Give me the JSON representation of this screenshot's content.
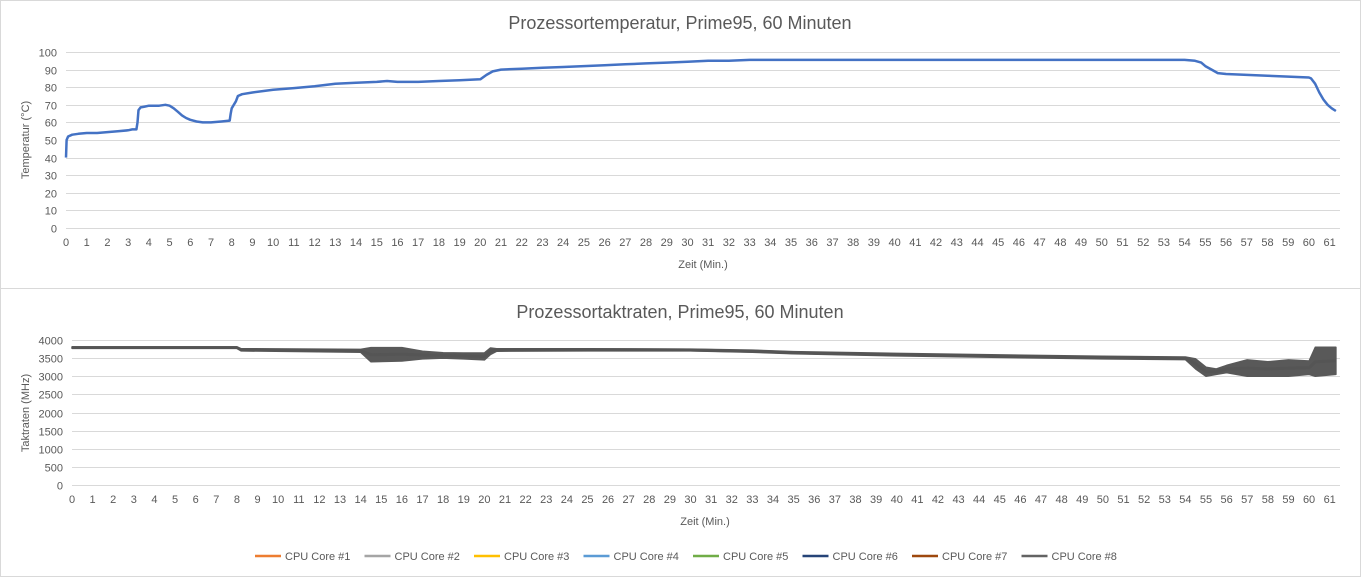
{
  "chart_data": [
    {
      "type": "line",
      "title": "Prozessortemperatur, Prime95, 60 Minuten",
      "xlabel": "Zeit (Min.)",
      "ylabel": "Temperatur (°C)",
      "xlim": [
        0,
        61.5
      ],
      "ylim": [
        0,
        100
      ],
      "x_ticks": [
        "0",
        "1",
        "2",
        "3",
        "4",
        "5",
        "6",
        "7",
        "8",
        "9",
        "10",
        "11",
        "12",
        "13",
        "14",
        "15",
        "16",
        "17",
        "18",
        "19",
        "20",
        "21",
        "22",
        "23",
        "24",
        "25",
        "26",
        "27",
        "28",
        "29",
        "30",
        "31",
        "32",
        "33",
        "34",
        "35",
        "36",
        "37",
        "38",
        "39",
        "40",
        "41",
        "42",
        "43",
        "44",
        "45",
        "46",
        "47",
        "48",
        "49",
        "50",
        "51",
        "52",
        "53",
        "54",
        "55",
        "56",
        "57",
        "58",
        "59",
        "60",
        "61"
      ],
      "y_ticks": [
        "0",
        "10",
        "20",
        "30",
        "40",
        "50",
        "60",
        "70",
        "80",
        "90",
        "100"
      ],
      "grid": true,
      "series": [
        {
          "color": "#4472c4",
          "x": [
            0,
            0.03,
            0.1,
            0.3,
            0.6,
            1,
            1.5,
            2,
            2.5,
            3,
            3.2,
            3.4,
            3.45,
            3.5,
            3.6,
            3.8,
            4,
            4.5,
            4.8,
            5,
            5.2,
            5.4,
            5.6,
            5.8,
            6,
            6.3,
            6.6,
            7,
            7.5,
            7.9,
            7.95,
            8.0,
            8.1,
            8.2,
            8.3,
            8.5,
            9,
            10,
            11,
            12,
            13,
            14,
            15,
            15.5,
            16,
            17,
            18,
            19,
            20,
            20.3,
            20.6,
            21,
            22,
            23,
            24,
            25,
            26,
            27,
            28,
            29,
            30,
            31,
            32,
            33,
            35,
            40,
            45,
            50,
            54,
            54.5,
            54.8,
            55,
            55.3,
            55.6,
            56,
            57,
            58,
            59,
            60,
            60.1,
            60.3,
            60.5,
            60.7,
            60.9,
            61.1,
            61.3
          ],
          "y": [
            40,
            50,
            52,
            53,
            53.5,
            54,
            54,
            54.5,
            55,
            55.5,
            56,
            56,
            60,
            67,
            68.5,
            69,
            69.5,
            69.5,
            70,
            69.5,
            68,
            66,
            64,
            62.5,
            61.5,
            60.5,
            60,
            60,
            60.5,
            61,
            65,
            68,
            70,
            72,
            75,
            76,
            77,
            78.5,
            79.5,
            80.5,
            82,
            82.5,
            83,
            83.5,
            83,
            83,
            83.5,
            84,
            84.5,
            87,
            89,
            90,
            90.5,
            91,
            91.5,
            92,
            92.5,
            93,
            93.5,
            94,
            94.5,
            95,
            95,
            95.5,
            95.5,
            95.5,
            95.5,
            95.5,
            95.5,
            95,
            94,
            92,
            90,
            88,
            87.5,
            87,
            86.5,
            86,
            85.5,
            85,
            82,
            77,
            73,
            70,
            68,
            66.5
          ]
        }
      ]
    },
    {
      "type": "line",
      "title": "Prozessortaktraten, Prime95, 60 Minuten",
      "xlabel": "Zeit (Min.)",
      "ylabel": "Taktraten (MHz)",
      "xlim": [
        0,
        61.5
      ],
      "ylim": [
        0,
        4000
      ],
      "x_ticks": [
        "0",
        "1",
        "2",
        "3",
        "4",
        "5",
        "6",
        "7",
        "8",
        "9",
        "10",
        "11",
        "12",
        "13",
        "14",
        "15",
        "16",
        "17",
        "18",
        "19",
        "20",
        "21",
        "22",
        "23",
        "24",
        "25",
        "26",
        "27",
        "28",
        "29",
        "30",
        "31",
        "32",
        "33",
        "34",
        "35",
        "36",
        "37",
        "38",
        "39",
        "40",
        "41",
        "42",
        "43",
        "44",
        "45",
        "46",
        "47",
        "48",
        "49",
        "50",
        "51",
        "52",
        "53",
        "54",
        "55",
        "56",
        "57",
        "58",
        "59",
        "60",
        "61"
      ],
      "y_ticks": [
        "0",
        "500",
        "1000",
        "1500",
        "2000",
        "2500",
        "3000",
        "3500",
        "4000"
      ],
      "grid": true,
      "legend_position": "bottom",
      "legend": [
        {
          "name": "CPU Core #1",
          "color": "#ed7d31"
        },
        {
          "name": "CPU Core #2",
          "color": "#a5a5a5"
        },
        {
          "name": "CPU Core #3",
          "color": "#ffc000"
        },
        {
          "name": "CPU Core #4",
          "color": "#5b9bd5"
        },
        {
          "name": "CPU Core #5",
          "color": "#70ad47"
        },
        {
          "name": "CPU Core #6",
          "color": "#264478"
        },
        {
          "name": "CPU Core #7",
          "color": "#9e480e"
        },
        {
          "name": "CPU Core #8",
          "color": "#636363"
        }
      ],
      "band": {
        "color": "#595959",
        "x": [
          0,
          8,
          8.2,
          14,
          14.5,
          16,
          17,
          18,
          19,
          20,
          20.3,
          20.6,
          25,
          30,
          33,
          35,
          40,
          45,
          50,
          54,
          54.5,
          55,
          55.5,
          56,
          57,
          58,
          59,
          60,
          60.3,
          61.3
        ],
        "low": [
          3770,
          3770,
          3700,
          3660,
          3400,
          3420,
          3480,
          3500,
          3480,
          3450,
          3600,
          3690,
          3700,
          3700,
          3660,
          3620,
          3560,
          3520,
          3480,
          3460,
          3200,
          3000,
          3050,
          3100,
          3000,
          3000,
          3000,
          3050,
          3000,
          3050
        ],
        "high": [
          3810,
          3810,
          3760,
          3740,
          3790,
          3790,
          3690,
          3650,
          3640,
          3640,
          3780,
          3760,
          3760,
          3750,
          3720,
          3680,
          3630,
          3590,
          3550,
          3530,
          3480,
          3250,
          3200,
          3300,
          3450,
          3400,
          3450,
          3420,
          3800,
          3800
        ]
      }
    }
  ]
}
